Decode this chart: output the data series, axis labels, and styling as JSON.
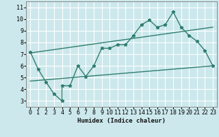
{
  "xlabel": "Humidex (Indice chaleur)",
  "bg_color": "#cce8ec",
  "grid_color": "#ffffff",
  "line_color": "#2e7d6e",
  "xlim": [
    -0.5,
    23.5
  ],
  "ylim": [
    2.5,
    11.5
  ],
  "xticks": [
    0,
    1,
    2,
    3,
    4,
    5,
    6,
    7,
    8,
    9,
    10,
    11,
    12,
    13,
    14,
    15,
    16,
    17,
    18,
    19,
    20,
    21,
    22,
    23
  ],
  "yticks": [
    3,
    4,
    5,
    6,
    7,
    8,
    9,
    10,
    11
  ],
  "main_line_x": [
    0,
    1,
    2,
    3,
    4,
    4,
    5,
    6,
    7,
    8,
    9,
    10,
    11,
    12,
    13,
    14,
    15,
    16,
    17,
    18,
    19,
    20,
    21,
    22,
    23
  ],
  "main_line_y": [
    7.2,
    5.7,
    4.6,
    3.6,
    3.0,
    4.3,
    4.3,
    6.0,
    5.1,
    6.0,
    7.5,
    7.5,
    7.8,
    7.8,
    8.6,
    9.5,
    9.9,
    9.3,
    9.5,
    10.6,
    9.3,
    8.6,
    8.1,
    7.3,
    6.0
  ],
  "upper_line_x": [
    0,
    23
  ],
  "upper_line_y": [
    7.1,
    9.3
  ],
  "lower_line_x": [
    0,
    23
  ],
  "lower_line_y": [
    4.7,
    6.0
  ],
  "xlabel_fontsize": 6.5,
  "tick_fontsize": 6.0
}
